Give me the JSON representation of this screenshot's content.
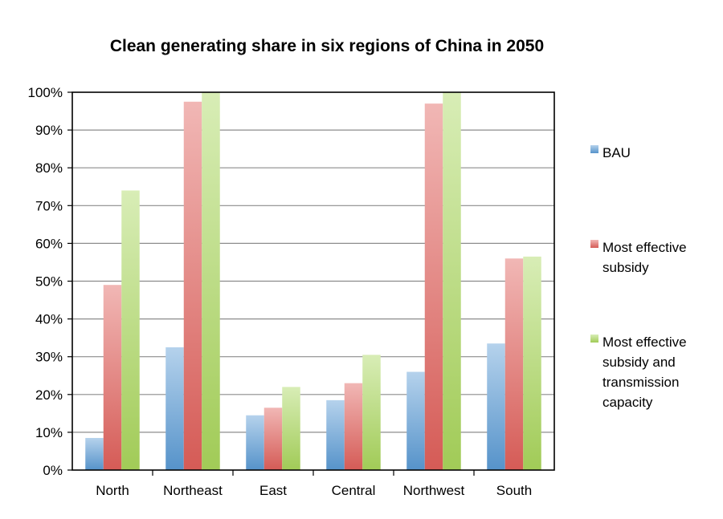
{
  "chart_data": {
    "type": "bar",
    "title": "Clean generating share in six regions of China in 2050",
    "categories": [
      "North",
      "Northeast",
      "East",
      "Central",
      "Northwest",
      "South"
    ],
    "series": [
      {
        "name": "BAU",
        "legend_lines": [
          "BAU"
        ],
        "color": "#5b9bd5",
        "values": [
          8.5,
          32.5,
          14.5,
          18.5,
          26,
          33.5
        ]
      },
      {
        "name": "Most effective subsidy",
        "legend_lines": [
          "Most effective",
          "subsidy"
        ],
        "color": "#e0605a",
        "values": [
          49,
          97.5,
          16.5,
          23,
          97,
          56
        ]
      },
      {
        "name": "Most effective subsidy and transmission capacity",
        "legend_lines": [
          "Most effective",
          "subsidy and",
          "transmission",
          "capacity"
        ],
        "color": "#a9d65c",
        "values": [
          74,
          100,
          22,
          30.5,
          100,
          56.5
        ]
      }
    ],
    "yticks": [
      "0%",
      "10%",
      "20%",
      "30%",
      "40%",
      "50%",
      "60%",
      "70%",
      "80%",
      "90%",
      "100%"
    ],
    "ylim": [
      0,
      100
    ],
    "grid": true,
    "legend_position": "right"
  }
}
